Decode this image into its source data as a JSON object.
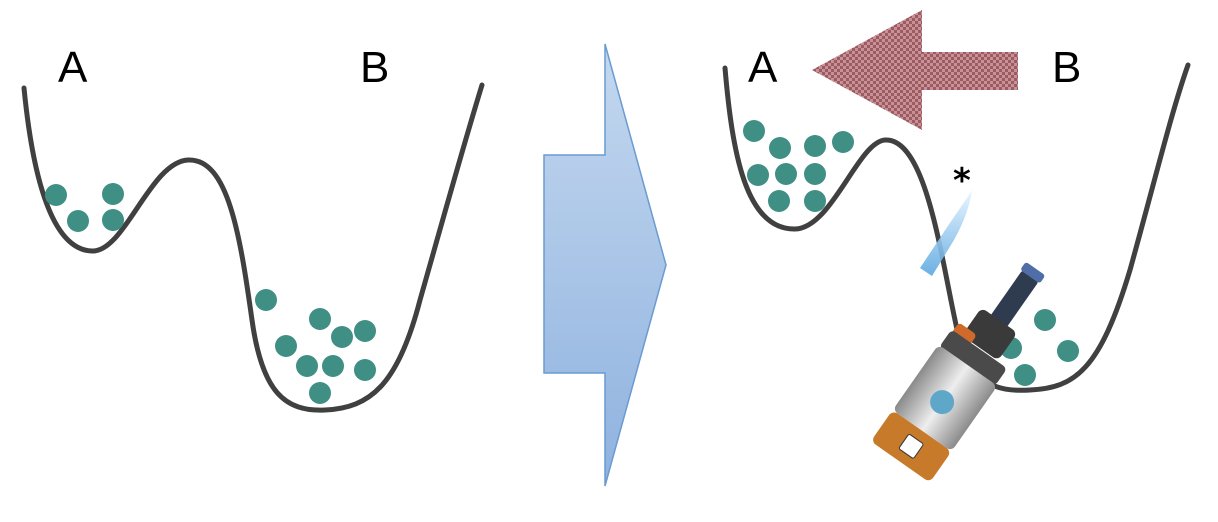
{
  "colors": {
    "curve": "#404040",
    "particle": "#3f8f85",
    "transition_arrow_fill": "#a4c2e6",
    "transition_arrow_stroke": "#6a9bd1",
    "reverse_arrow": "#b07a7f",
    "flame": "#9fd0f2",
    "torch_body": "#c9c9c9",
    "torch_base": "#c77a2a",
    "torch_head": "#3a3a3a"
  },
  "left_panel": {
    "label_a": "A",
    "label_b": "B",
    "particles_in_well_a": 4,
    "particles_in_well_b": 9
  },
  "right_panel": {
    "label_a": "A",
    "label_b": "B",
    "particles_in_well_a": 9,
    "particles_in_well_b": 4,
    "heat_marker": "*"
  },
  "icons": {
    "transition": "right-arrow-icon",
    "reverse_flow": "left-arrow-icon",
    "heat_source": "blowtorch-icon"
  }
}
